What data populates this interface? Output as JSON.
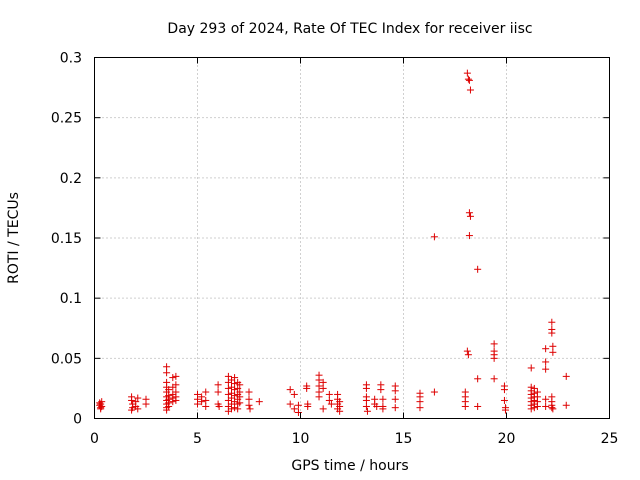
{
  "chart_data": {
    "type": "scatter",
    "title": "Day 293 of 2024, Rate Of TEC Index for receiver iisc",
    "xlabel": "GPS time / hours",
    "ylabel": "ROTI / TECUs",
    "xlim": [
      0,
      25
    ],
    "ylim": [
      0,
      0.3
    ],
    "xticks": [
      0,
      5,
      10,
      15,
      20,
      25
    ],
    "xtick_labels": [
      "0",
      "5",
      "10",
      "15",
      "20",
      "25"
    ],
    "yticks": [
      0,
      0.05,
      0.1,
      0.15,
      0.2,
      0.25,
      0.3
    ],
    "ytick_labels": [
      "0",
      "0.05",
      "0.1",
      "0.15",
      "0.2",
      "0.25",
      "0.3"
    ],
    "grid": true,
    "marker": "+",
    "marker_color": "#dd0000",
    "series": [
      {
        "name": "ROTI",
        "points": [
          [
            0.25,
            0.011
          ],
          [
            0.25,
            0.013
          ],
          [
            0.3,
            0.009
          ],
          [
            0.3,
            0.012
          ],
          [
            0.35,
            0.01
          ],
          [
            0.35,
            0.014
          ],
          [
            0.3,
            0.008
          ],
          [
            1.8,
            0.018
          ],
          [
            1.8,
            0.015
          ],
          [
            1.85,
            0.012
          ],
          [
            1.85,
            0.009
          ],
          [
            1.8,
            0.007
          ],
          [
            2.0,
            0.014
          ],
          [
            2.0,
            0.01
          ],
          [
            2.1,
            0.008
          ],
          [
            2.1,
            0.017
          ],
          [
            2.5,
            0.016
          ],
          [
            2.5,
            0.012
          ],
          [
            3.5,
            0.043
          ],
          [
            3.5,
            0.038
          ],
          [
            3.5,
            0.03
          ],
          [
            3.5,
            0.026
          ],
          [
            3.5,
            0.022
          ],
          [
            3.5,
            0.018
          ],
          [
            3.5,
            0.015
          ],
          [
            3.5,
            0.012
          ],
          [
            3.5,
            0.009
          ],
          [
            3.5,
            0.007
          ],
          [
            3.6,
            0.024
          ],
          [
            3.6,
            0.019
          ],
          [
            3.6,
            0.016
          ],
          [
            3.6,
            0.013
          ],
          [
            3.6,
            0.01
          ],
          [
            3.8,
            0.034
          ],
          [
            3.8,
            0.026
          ],
          [
            3.8,
            0.02
          ],
          [
            3.8,
            0.017
          ],
          [
            3.8,
            0.014
          ],
          [
            3.95,
            0.035
          ],
          [
            3.95,
            0.028
          ],
          [
            3.95,
            0.022
          ],
          [
            3.95,
            0.018
          ],
          [
            3.95,
            0.015
          ],
          [
            5.0,
            0.02
          ],
          [
            5.0,
            0.016
          ],
          [
            5.0,
            0.012
          ],
          [
            5.2,
            0.014
          ],
          [
            5.2,
            0.018
          ],
          [
            5.4,
            0.022
          ],
          [
            5.4,
            0.015
          ],
          [
            5.4,
            0.01
          ],
          [
            6.0,
            0.028
          ],
          [
            6.0,
            0.022
          ],
          [
            6.0,
            0.012
          ],
          [
            6.05,
            0.01
          ],
          [
            6.5,
            0.035
          ],
          [
            6.5,
            0.03
          ],
          [
            6.5,
            0.025
          ],
          [
            6.5,
            0.02
          ],
          [
            6.5,
            0.015
          ],
          [
            6.5,
            0.01
          ],
          [
            6.5,
            0.006
          ],
          [
            6.65,
            0.032
          ],
          [
            6.65,
            0.026
          ],
          [
            6.65,
            0.021
          ],
          [
            6.65,
            0.017
          ],
          [
            6.65,
            0.012
          ],
          [
            6.65,
            0.008
          ],
          [
            6.8,
            0.034
          ],
          [
            6.8,
            0.029
          ],
          [
            6.8,
            0.024
          ],
          [
            6.8,
            0.019
          ],
          [
            6.8,
            0.014
          ],
          [
            6.8,
            0.009
          ],
          [
            6.95,
            0.03
          ],
          [
            6.95,
            0.025
          ],
          [
            6.95,
            0.02
          ],
          [
            6.95,
            0.016
          ],
          [
            6.95,
            0.012
          ],
          [
            6.95,
            0.008
          ],
          [
            7.05,
            0.028
          ],
          [
            7.05,
            0.022
          ],
          [
            7.05,
            0.018
          ],
          [
            7.05,
            0.013
          ],
          [
            7.5,
            0.022
          ],
          [
            7.5,
            0.016
          ],
          [
            7.5,
            0.011
          ],
          [
            7.55,
            0.008
          ],
          [
            8.0,
            0.014
          ],
          [
            9.5,
            0.024
          ],
          [
            9.5,
            0.012
          ],
          [
            9.7,
            0.02
          ],
          [
            9.7,
            0.008
          ],
          [
            9.9,
            0.011
          ],
          [
            9.9,
            0.005
          ],
          [
            10.3,
            0.027
          ],
          [
            10.3,
            0.025
          ],
          [
            10.35,
            0.012
          ],
          [
            10.35,
            0.01
          ],
          [
            10.9,
            0.036
          ],
          [
            10.9,
            0.032
          ],
          [
            10.9,
            0.027
          ],
          [
            10.9,
            0.022
          ],
          [
            10.9,
            0.018
          ],
          [
            11.1,
            0.03
          ],
          [
            11.1,
            0.025
          ],
          [
            11.1,
            0.008
          ],
          [
            11.4,
            0.02
          ],
          [
            11.4,
            0.015
          ],
          [
            11.5,
            0.012
          ],
          [
            11.8,
            0.02
          ],
          [
            11.8,
            0.016
          ],
          [
            11.8,
            0.012
          ],
          [
            11.8,
            0.008
          ],
          [
            11.9,
            0.014
          ],
          [
            11.9,
            0.01
          ],
          [
            11.9,
            0.006
          ],
          [
            13.2,
            0.028
          ],
          [
            13.2,
            0.025
          ],
          [
            13.2,
            0.018
          ],
          [
            13.2,
            0.015
          ],
          [
            13.2,
            0.01
          ],
          [
            13.25,
            0.006
          ],
          [
            13.6,
            0.016
          ],
          [
            13.6,
            0.012
          ],
          [
            13.7,
            0.01
          ],
          [
            13.9,
            0.028
          ],
          [
            13.9,
            0.024
          ],
          [
            14.0,
            0.016
          ],
          [
            14.0,
            0.01
          ],
          [
            14.0,
            0.008
          ],
          [
            14.6,
            0.027
          ],
          [
            14.6,
            0.023
          ],
          [
            14.6,
            0.016
          ],
          [
            14.6,
            0.009
          ],
          [
            15.8,
            0.021
          ],
          [
            15.8,
            0.018
          ],
          [
            15.8,
            0.014
          ],
          [
            15.8,
            0.009
          ],
          [
            16.5,
            0.151
          ],
          [
            16.5,
            0.022
          ],
          [
            18.1,
            0.287
          ],
          [
            18.15,
            0.282
          ],
          [
            18.2,
            0.281
          ],
          [
            18.25,
            0.273
          ],
          [
            18.2,
            0.171
          ],
          [
            18.25,
            0.168
          ],
          [
            18.2,
            0.152
          ],
          [
            18.1,
            0.056
          ],
          [
            18.15,
            0.053
          ],
          [
            18.0,
            0.022
          ],
          [
            18.0,
            0.018
          ],
          [
            18.0,
            0.014
          ],
          [
            18.0,
            0.01
          ],
          [
            18.6,
            0.124
          ],
          [
            18.6,
            0.033
          ],
          [
            18.6,
            0.01
          ],
          [
            19.4,
            0.062
          ],
          [
            19.4,
            0.056
          ],
          [
            19.4,
            0.053
          ],
          [
            19.4,
            0.05
          ],
          [
            19.4,
            0.033
          ],
          [
            19.9,
            0.027
          ],
          [
            19.9,
            0.024
          ],
          [
            19.9,
            0.015
          ],
          [
            19.95,
            0.009
          ],
          [
            19.95,
            0.007
          ],
          [
            21.2,
            0.042
          ],
          [
            21.2,
            0.026
          ],
          [
            21.2,
            0.023
          ],
          [
            21.2,
            0.02
          ],
          [
            21.2,
            0.017
          ],
          [
            21.2,
            0.014
          ],
          [
            21.2,
            0.011
          ],
          [
            21.2,
            0.008
          ],
          [
            21.35,
            0.025
          ],
          [
            21.35,
            0.021
          ],
          [
            21.35,
            0.018
          ],
          [
            21.35,
            0.015
          ],
          [
            21.35,
            0.012
          ],
          [
            21.35,
            0.009
          ],
          [
            21.5,
            0.022
          ],
          [
            21.5,
            0.018
          ],
          [
            21.5,
            0.014
          ],
          [
            21.5,
            0.01
          ],
          [
            21.9,
            0.058
          ],
          [
            21.9,
            0.047
          ],
          [
            21.9,
            0.041
          ],
          [
            21.9,
            0.016
          ],
          [
            21.9,
            0.01
          ],
          [
            22.2,
            0.08
          ],
          [
            22.2,
            0.074
          ],
          [
            22.2,
            0.071
          ],
          [
            22.25,
            0.06
          ],
          [
            22.25,
            0.055
          ],
          [
            22.2,
            0.018
          ],
          [
            22.2,
            0.014
          ],
          [
            22.2,
            0.011
          ],
          [
            22.2,
            0.009
          ],
          [
            22.25,
            0.008
          ],
          [
            22.9,
            0.035
          ],
          [
            22.9,
            0.011
          ]
        ]
      }
    ]
  }
}
